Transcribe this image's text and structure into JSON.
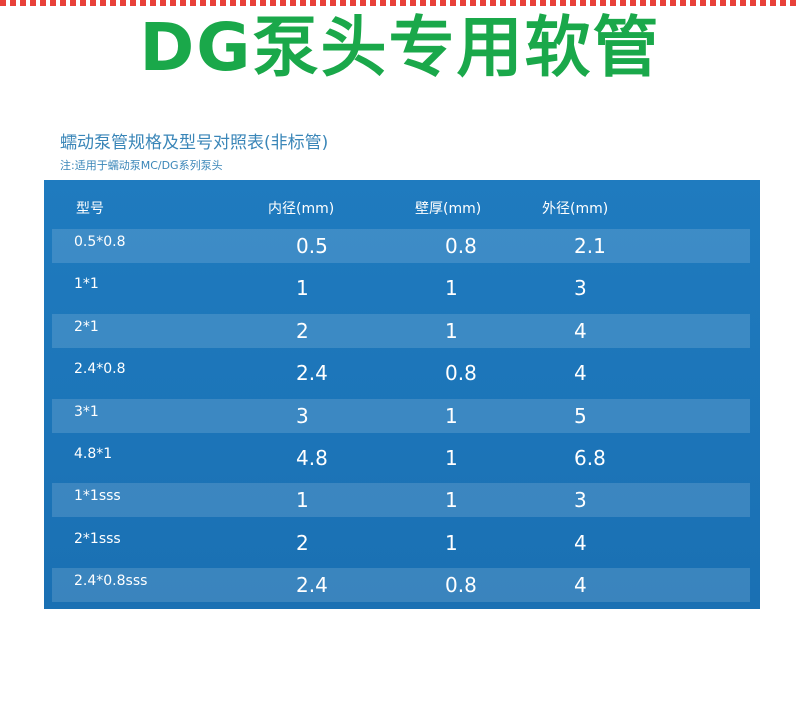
{
  "banner": {
    "title": "DG泵头专用软管"
  },
  "subtitle": "蠕动泵管规格及型号对照表(非标管)",
  "note": "注:适用于蠕动泵MC/DG系列泵头",
  "table": {
    "headers": [
      "型号",
      "内径(mm)",
      "壁厚(mm)",
      "外径(mm)"
    ],
    "rows": [
      [
        "0.5*0.8",
        "0.5",
        "0.8",
        "2.1"
      ],
      [
        "1*1",
        "1",
        "1",
        "3"
      ],
      [
        "2*1",
        "2",
        "1",
        "4"
      ],
      [
        "2.4*0.8",
        "2.4",
        "0.8",
        "4"
      ],
      [
        "3*1",
        "3",
        "1",
        "5"
      ],
      [
        "4.8*1",
        "4.8",
        "1",
        "6.8"
      ],
      [
        "1*1sss",
        "1",
        "1",
        "3"
      ],
      [
        "2*1sss",
        "2",
        "1",
        "4"
      ],
      [
        "2.4*0.8sss",
        "2.4",
        "0.8",
        "4"
      ]
    ]
  },
  "colors": {
    "title_green": "#1aa84a",
    "panel_blue": "#1b74b8",
    "subtitle_blue": "#3a86b8"
  }
}
